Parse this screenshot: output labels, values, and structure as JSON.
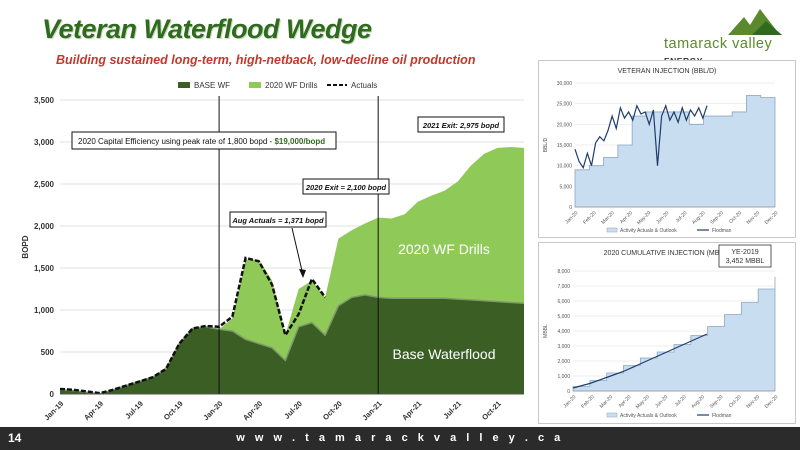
{
  "header": {
    "title": "Veteran Waterflood Wedge",
    "subtitle": "Building sustained long-term, high-netback, low-decline oil production"
  },
  "logo": {
    "name": "tamarack valley",
    "suffix": "ENERGY"
  },
  "footer": {
    "page_number": "14",
    "url": "w w w . t a m a r a c k v a l l e y . c a"
  },
  "colors": {
    "base_wf": "#3a5e24",
    "drills": "#8fca59",
    "actuals": "#111111",
    "title": "#2e6b1f",
    "subtitle": "#c0392b",
    "panel_fill": "#c9ddf0",
    "panel_line": "#1f3d6b"
  },
  "chart_data": [
    {
      "type": "area",
      "title": "",
      "ylabel": "BOPD",
      "xlabel": "",
      "ylim": [
        0,
        3500
      ],
      "yticks": [
        "0",
        "500",
        "1,000",
        "1,500",
        "2,000",
        "2,500",
        "3,000",
        "3,500"
      ],
      "x_labels": [
        "Jan-19",
        "Apr-19",
        "Jul-19",
        "Oct-19",
        "Jan-20",
        "Apr-20",
        "Jul-20",
        "Oct-20",
        "Jan-21",
        "Apr-21",
        "Jul-21",
        "Oct-21"
      ],
      "legend": {
        "position": "top",
        "items": [
          "BASE WF",
          "2020 WF Drills",
          "Actuals"
        ]
      },
      "series": [
        {
          "name": "BASE WF",
          "values": [
            50,
            40,
            20,
            0,
            50,
            100,
            150,
            200,
            300,
            600,
            780,
            800,
            770,
            750,
            650,
            600,
            550,
            400,
            800,
            850,
            700,
            1050,
            1150,
            1180,
            1150,
            1140,
            1140,
            1140,
            1140,
            1140,
            1130,
            1120,
            1110,
            1100,
            1090,
            1080
          ]
        },
        {
          "name": "2020 WF Drills",
          "values": [
            0,
            0,
            0,
            0,
            0,
            0,
            0,
            0,
            0,
            0,
            0,
            0,
            0,
            150,
            950,
            1000,
            800,
            300,
            450,
            500,
            450,
            800,
            800,
            850,
            950,
            950,
            1000,
            1150,
            1220,
            1280,
            1400,
            1600,
            1750,
            1830,
            1850,
            1850
          ]
        },
        {
          "name": "Actuals",
          "x_index": [
            0,
            1,
            2,
            3,
            4,
            5,
            6,
            7,
            8,
            9,
            10,
            11,
            12,
            13,
            14,
            15,
            16,
            17,
            18,
            19,
            20
          ],
          "values": [
            60,
            50,
            30,
            10,
            50,
            100,
            150,
            200,
            300,
            600,
            780,
            810,
            800,
            920,
            1620,
            1580,
            1300,
            700,
            950,
            1370,
            1150
          ]
        }
      ],
      "annotations": [
        {
          "text_plain": "2020 Capital Efficiency using peak rate of 1,800 bopd - ",
          "text_bold": "$19,000/bopd"
        },
        {
          "text": "2021 Exit: 2,975 bopd"
        },
        {
          "text": "2020 Exit = 2,100 bopd"
        },
        {
          "text": "Aug Actuals = 1,371 bopd"
        },
        {
          "text": "2020 WF Drills"
        },
        {
          "text": "Base Waterflood"
        }
      ]
    },
    {
      "type": "area",
      "title": "VETERAN INJECTION (BBL/D)",
      "ylabel": "BBL/D",
      "ylim": [
        0,
        30000
      ],
      "yticks": [
        "0",
        "5,000",
        "10,000",
        "15,000",
        "20,000",
        "25,000",
        "30,000"
      ],
      "x_labels": [
        "Jan-20",
        "Feb-20",
        "Mar-20",
        "Apr-20",
        "May-20",
        "Jun-20",
        "Jul-20",
        "Aug-20",
        "Sep-20",
        "Oct-20",
        "Nov-20",
        "Dec-20"
      ],
      "series": [
        {
          "name": "Activity Actuals & Outlook",
          "values": [
            9000,
            10000,
            12000,
            15000,
            22000,
            23000,
            23000,
            23000,
            20000,
            22000,
            22000,
            23000,
            27000,
            26500,
            26000
          ]
        },
        {
          "name": "Flodman",
          "values": [
            14000,
            11000,
            9500,
            13000,
            10000,
            15500,
            17000,
            16000,
            18500,
            22000,
            19000,
            24000,
            21500,
            23000,
            21000,
            24500,
            22500,
            23000,
            20000,
            23500,
            10000,
            22000,
            24500,
            21000,
            23000,
            20500,
            24000,
            21000,
            23500,
            22000,
            24000,
            21500,
            24500
          ]
        }
      ]
    },
    {
      "type": "area",
      "title": "2020 CUMULATIVE INJECTION (MBBL)",
      "ylabel": "MBBL",
      "ylim": [
        0,
        8000
      ],
      "yticks": [
        "0",
        "1,000",
        "2,000",
        "3,000",
        "4,000",
        "5,000",
        "6,000",
        "7,000",
        "8,000"
      ],
      "x_labels": [
        "Jan-20",
        "Feb-20",
        "Mar-20",
        "Apr-20",
        "May-20",
        "Jun-20",
        "Jul-20",
        "Aug-20",
        "Sep-20",
        "Oct-20",
        "Nov-20",
        "Dec-20"
      ],
      "callout": [
        "YE-2019",
        "3,452 MBBL"
      ],
      "series": [
        {
          "name": "Activity Actuals & Outlook",
          "values": [
            300,
            700,
            1200,
            1700,
            2200,
            2600,
            3100,
            3700,
            4300,
            5100,
            5900,
            6800,
            7600
          ]
        },
        {
          "name": "Flodman",
          "values": [
            200,
            500,
            900,
            1300,
            1800,
            2300,
            2800,
            3300,
            3800
          ]
        }
      ]
    }
  ]
}
